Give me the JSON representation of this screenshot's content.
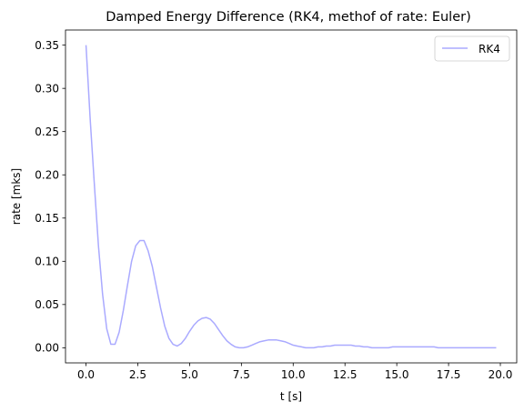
{
  "chart_data": {
    "type": "line",
    "title": "Damped Energy Difference (RK4, methof of rate: Euler)",
    "xlabel": "t [s]",
    "ylabel": "rate [mks]",
    "xlim": [
      -0.99,
      20.79
    ],
    "ylim": [
      -0.0175,
      0.3675
    ],
    "xticks": [
      0,
      2.5,
      5,
      7.5,
      10,
      12.5,
      15,
      17.5,
      20
    ],
    "xtick_labels": [
      "0.0",
      "2.5",
      "5.0",
      "7.5",
      "10.0",
      "12.5",
      "15.0",
      "17.5",
      "20.0"
    ],
    "yticks": [
      0,
      0.05,
      0.1,
      0.15,
      0.2,
      0.25,
      0.3,
      0.35
    ],
    "ytick_labels": [
      "0.00",
      "0.05",
      "0.10",
      "0.15",
      "0.20",
      "0.25",
      "0.30",
      "0.35"
    ],
    "grid": false,
    "legend_position": "top-right",
    "series": [
      {
        "name": "RK4",
        "color": "#aaaaff",
        "x": [
          0.0,
          0.2,
          0.4,
          0.6,
          0.8,
          1.0,
          1.2,
          1.4,
          1.6,
          1.8,
          2.0,
          2.2,
          2.4,
          2.6,
          2.8,
          3.0,
          3.2,
          3.4,
          3.6,
          3.8,
          4.0,
          4.2,
          4.4,
          4.6,
          4.8,
          5.0,
          5.2,
          5.4,
          5.6,
          5.8,
          6.0,
          6.2,
          6.4,
          6.6,
          6.8,
          7.0,
          7.2,
          7.4,
          7.6,
          7.8,
          8.0,
          8.2,
          8.4,
          8.6,
          8.8,
          9.0,
          9.2,
          9.4,
          9.6,
          9.8,
          10.0,
          10.2,
          10.4,
          10.6,
          10.8,
          11.0,
          11.2,
          11.4,
          11.6,
          11.8,
          12.0,
          12.2,
          12.4,
          12.6,
          12.8,
          13.0,
          13.2,
          13.4,
          13.6,
          13.8,
          14.0,
          14.2,
          14.4,
          14.6,
          14.8,
          15.0,
          15.2,
          15.4,
          15.6,
          15.8,
          16.0,
          16.2,
          16.4,
          16.6,
          16.8,
          17.0,
          17.2,
          17.4,
          17.6,
          17.8,
          18.0,
          18.2,
          18.4,
          18.6,
          18.8,
          19.0,
          19.2,
          19.4,
          19.6,
          19.8
        ],
        "y": [
          0.35,
          0.265,
          0.19,
          0.118,
          0.062,
          0.022,
          0.004,
          0.004,
          0.018,
          0.043,
          0.072,
          0.1,
          0.118,
          0.124,
          0.124,
          0.112,
          0.094,
          0.07,
          0.046,
          0.025,
          0.011,
          0.004,
          0.002,
          0.005,
          0.011,
          0.019,
          0.026,
          0.031,
          0.034,
          0.035,
          0.033,
          0.028,
          0.021,
          0.014,
          0.008,
          0.004,
          0.001,
          0.0,
          0.0,
          0.001,
          0.003,
          0.005,
          0.007,
          0.008,
          0.009,
          0.009,
          0.009,
          0.008,
          0.007,
          0.005,
          0.003,
          0.002,
          0.001,
          0.0,
          0.0,
          0.0,
          0.001,
          0.001,
          0.002,
          0.002,
          0.003,
          0.003,
          0.003,
          0.003,
          0.003,
          0.002,
          0.002,
          0.001,
          0.001,
          0.0,
          0.0,
          0.0,
          0.0,
          0.0,
          0.001,
          0.001,
          0.001,
          0.001,
          0.001,
          0.001,
          0.001,
          0.001,
          0.001,
          0.001,
          0.001,
          0.0,
          0.0,
          0.0,
          0.0,
          0.0,
          0.0,
          0.0,
          0.0,
          0.0,
          0.0,
          0.0,
          0.0,
          0.0,
          0.0,
          0.0
        ]
      }
    ]
  }
}
